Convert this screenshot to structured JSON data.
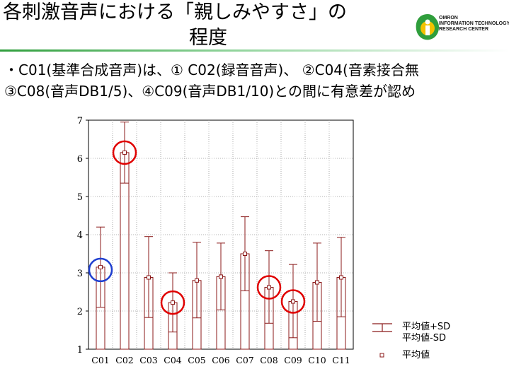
{
  "slide": {
    "title_line1": "各刺激音声における「親しみやすさ」の",
    "title_line2": "程度",
    "bullet_line1": "・C01(基準合成音声)は、① C02(録音音声)、 ②C04(音素接合無",
    "bullet_line2": "③C08(音声DB1/5)、④C09(音声DB1/10)との間に有意差が認め"
  },
  "logo": {
    "text_lines": [
      "OMRON",
      "INFORMATION TECHNOLOGY",
      "RESEARCH CENTER"
    ],
    "colors": {
      "green": "#2f9e3c",
      "yellow": "#f2c200"
    }
  },
  "chart_data": {
    "type": "bar",
    "categories": [
      "C01",
      "C02",
      "C03",
      "C04",
      "C05",
      "C06",
      "C07",
      "C08",
      "C09",
      "C10",
      "C11"
    ],
    "mean": [
      3.15,
      6.15,
      2.88,
      2.22,
      2.8,
      2.9,
      3.5,
      2.62,
      2.25,
      2.75,
      2.88
    ],
    "mean_plus_sd": [
      4.2,
      6.95,
      3.95,
      3.0,
      3.8,
      3.78,
      4.47,
      3.58,
      3.22,
      3.78,
      3.93
    ],
    "mean_minus_sd": [
      2.1,
      5.35,
      1.83,
      1.45,
      1.82,
      2.03,
      2.53,
      1.68,
      1.3,
      1.73,
      1.85
    ],
    "yticks": [
      "1",
      "2",
      "3",
      "4",
      "5",
      "6",
      "7"
    ],
    "ylim": [
      1,
      7
    ],
    "grid": true,
    "bar_color": "#8b1a1a",
    "highlight_red": [
      "C02",
      "C04",
      "C08",
      "C09"
    ],
    "highlight_blue": [
      "C01"
    ],
    "legend_position": "bottom-right",
    "legend": {
      "sd_plus": "平均値+SD",
      "sd_minus": "平均値-SD",
      "mean": "平均値"
    }
  }
}
